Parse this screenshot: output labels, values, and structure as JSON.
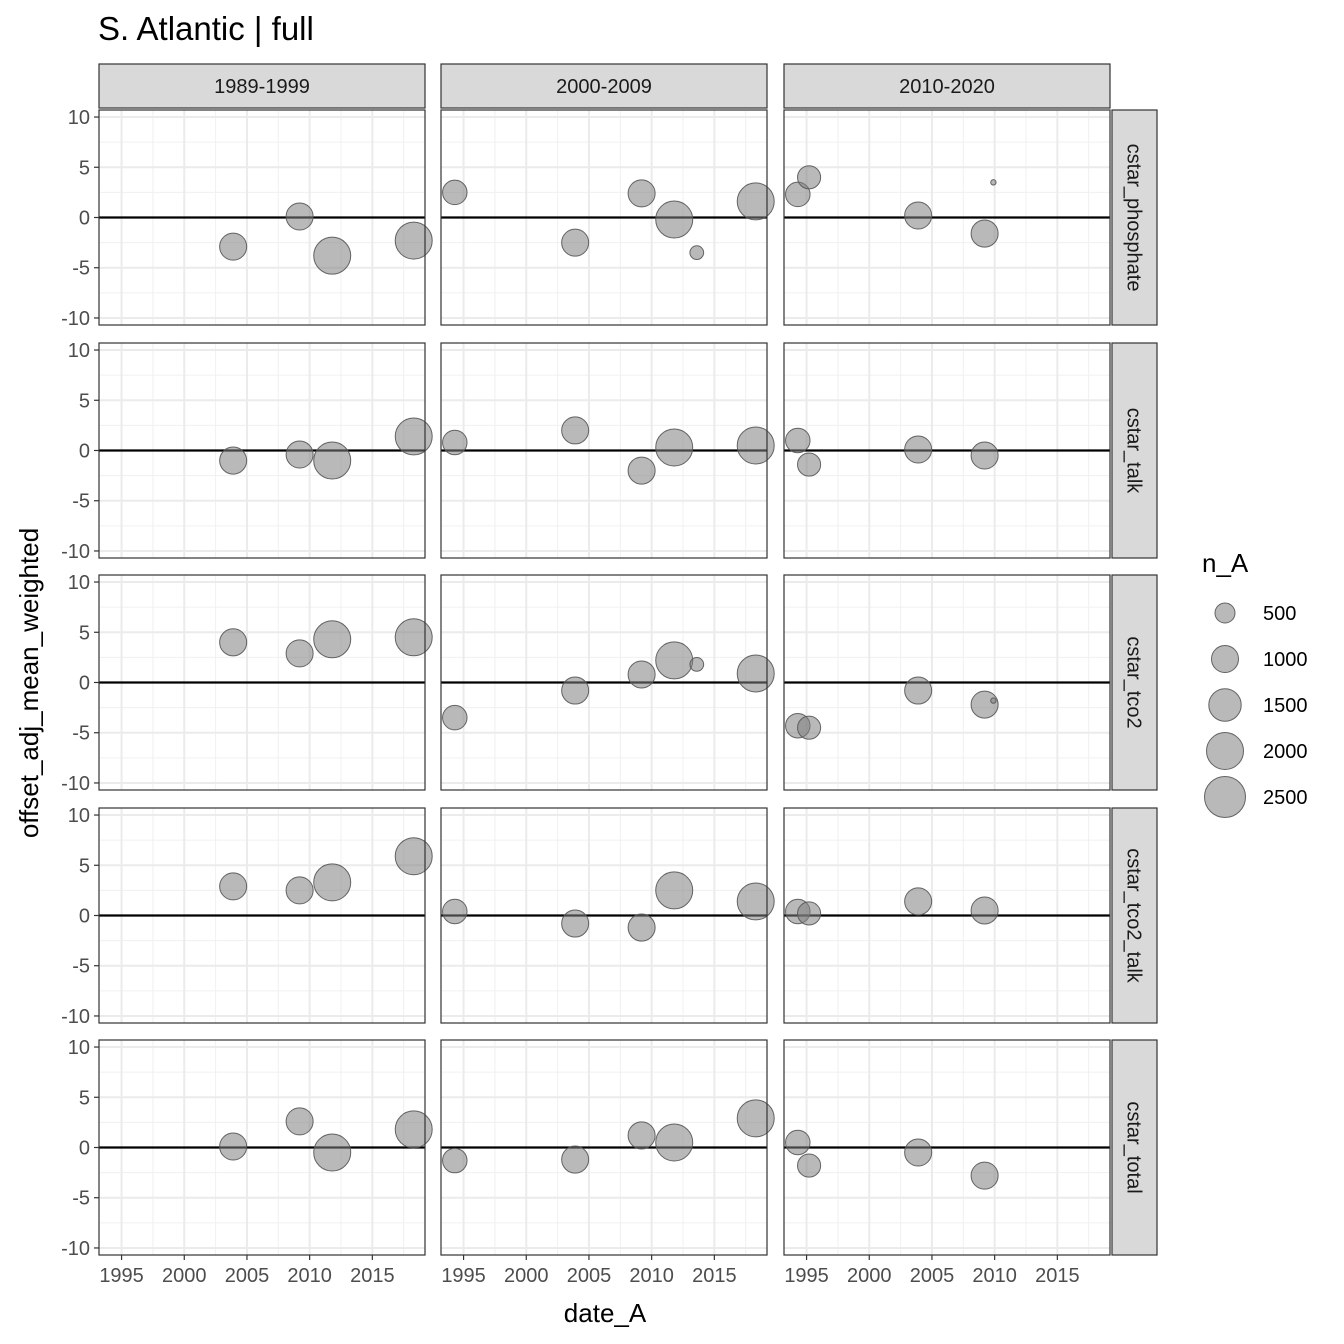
{
  "chart_data": {
    "type": "scatter",
    "title": "S. Atlantic | full",
    "xlabel": "date_A",
    "ylabel": "offset_adj_mean_weighted",
    "xlim": [
      1993.2,
      2019.2
    ],
    "ylim": [
      -10.7,
      10.7
    ],
    "x_ticks": [
      1995,
      2000,
      2005,
      2010,
      2015
    ],
    "x_tick_labels": [
      "1995",
      "2000",
      "2005",
      "2010",
      "2015"
    ],
    "y_ticks": [
      10,
      5,
      0,
      -5,
      -10
    ],
    "y_tick_labels": [
      "10",
      "5",
      "0",
      "-5",
      "-10"
    ],
    "reference_line_y": 0,
    "grid": true,
    "facet_columns": [
      "1989-1999",
      "2000-2009",
      "2010-2020"
    ],
    "facet_rows": [
      "cstar_phosphate",
      "cstar_talk",
      "cstar_tco2",
      "cstar_tco2_talk",
      "cstar_total"
    ],
    "point_color": "#808080",
    "point_stroke": "#555555",
    "point_opacity": 0.55,
    "size_legend": {
      "title": "n_A",
      "breaks": [
        500,
        1000,
        1500,
        2000,
        2500
      ],
      "labels": [
        "500",
        "1000",
        "1500",
        "2000",
        "2500"
      ]
    },
    "panels": [
      {
        "row": "cstar_phosphate",
        "col": "1989-1999",
        "points": [
          {
            "x": 2003.9,
            "y": -2.9,
            "n": 1000
          },
          {
            "x": 2009.2,
            "y": 0.1,
            "n": 1000
          },
          {
            "x": 2011.8,
            "y": -3.8,
            "n": 2000
          },
          {
            "x": 2018.3,
            "y": -2.3,
            "n": 2000
          }
        ]
      },
      {
        "row": "cstar_phosphate",
        "col": "2000-2009",
        "points": [
          {
            "x": 1994.3,
            "y": 2.5,
            "n": 800
          },
          {
            "x": 2003.9,
            "y": -2.5,
            "n": 1000
          },
          {
            "x": 2009.2,
            "y": 2.4,
            "n": 1000
          },
          {
            "x": 2011.8,
            "y": -0.2,
            "n": 2000
          },
          {
            "x": 2013.6,
            "y": -3.5,
            "n": 200
          },
          {
            "x": 2018.3,
            "y": 1.6,
            "n": 2000
          }
        ]
      },
      {
        "row": "cstar_phosphate",
        "col": "2010-2020",
        "points": [
          {
            "x": 1994.3,
            "y": 2.3,
            "n": 800
          },
          {
            "x": 1995.2,
            "y": 4.0,
            "n": 700
          },
          {
            "x": 2003.9,
            "y": 0.2,
            "n": 1000
          },
          {
            "x": 2009.2,
            "y": -1.6,
            "n": 1000
          },
          {
            "x": 2009.9,
            "y": 3.5,
            "n": 10
          }
        ]
      },
      {
        "row": "cstar_talk",
        "col": "1989-1999",
        "points": [
          {
            "x": 2003.9,
            "y": -1.0,
            "n": 1000
          },
          {
            "x": 2009.2,
            "y": -0.4,
            "n": 1000
          },
          {
            "x": 2011.8,
            "y": -1.0,
            "n": 2000
          },
          {
            "x": 2018.3,
            "y": 1.4,
            "n": 2000
          }
        ]
      },
      {
        "row": "cstar_talk",
        "col": "2000-2009",
        "points": [
          {
            "x": 1994.3,
            "y": 0.8,
            "n": 800
          },
          {
            "x": 2003.9,
            "y": 2.0,
            "n": 1000
          },
          {
            "x": 2009.2,
            "y": -2.0,
            "n": 1000
          },
          {
            "x": 2011.8,
            "y": 0.3,
            "n": 2000
          },
          {
            "x": 2018.3,
            "y": 0.5,
            "n": 2000
          }
        ]
      },
      {
        "row": "cstar_talk",
        "col": "2010-2020",
        "points": [
          {
            "x": 1994.3,
            "y": 1.0,
            "n": 800
          },
          {
            "x": 1995.2,
            "y": -1.4,
            "n": 700
          },
          {
            "x": 2003.9,
            "y": 0.1,
            "n": 1000
          },
          {
            "x": 2009.2,
            "y": -0.5,
            "n": 1000
          }
        ]
      },
      {
        "row": "cstar_tco2",
        "col": "1989-1999",
        "points": [
          {
            "x": 2003.9,
            "y": 4.0,
            "n": 1000
          },
          {
            "x": 2009.2,
            "y": 2.9,
            "n": 1000
          },
          {
            "x": 2011.8,
            "y": 4.3,
            "n": 2000
          },
          {
            "x": 2018.3,
            "y": 4.5,
            "n": 2000
          }
        ]
      },
      {
        "row": "cstar_tco2",
        "col": "2000-2009",
        "points": [
          {
            "x": 1994.3,
            "y": -3.5,
            "n": 800
          },
          {
            "x": 2003.9,
            "y": -0.8,
            "n": 1000
          },
          {
            "x": 2009.2,
            "y": 0.8,
            "n": 1000
          },
          {
            "x": 2011.8,
            "y": 2.2,
            "n": 2000
          },
          {
            "x": 2013.6,
            "y": 1.8,
            "n": 200
          },
          {
            "x": 2018.3,
            "y": 0.9,
            "n": 2000
          }
        ]
      },
      {
        "row": "cstar_tco2",
        "col": "2010-2020",
        "points": [
          {
            "x": 1994.3,
            "y": -4.3,
            "n": 800
          },
          {
            "x": 1995.2,
            "y": -4.5,
            "n": 700
          },
          {
            "x": 2003.9,
            "y": -0.8,
            "n": 1000
          },
          {
            "x": 2009.2,
            "y": -2.2,
            "n": 1000
          },
          {
            "x": 2009.9,
            "y": -1.8,
            "n": 10
          }
        ]
      },
      {
        "row": "cstar_tco2_talk",
        "col": "1989-1999",
        "points": [
          {
            "x": 2003.9,
            "y": 2.9,
            "n": 1000
          },
          {
            "x": 2009.2,
            "y": 2.5,
            "n": 1000
          },
          {
            "x": 2011.8,
            "y": 3.3,
            "n": 2000
          },
          {
            "x": 2018.3,
            "y": 5.9,
            "n": 2000
          }
        ]
      },
      {
        "row": "cstar_tco2_talk",
        "col": "2000-2009",
        "points": [
          {
            "x": 1994.3,
            "y": 0.4,
            "n": 800
          },
          {
            "x": 2003.9,
            "y": -0.8,
            "n": 1000
          },
          {
            "x": 2009.2,
            "y": -1.2,
            "n": 1000
          },
          {
            "x": 2011.8,
            "y": 2.5,
            "n": 2000
          },
          {
            "x": 2018.3,
            "y": 1.4,
            "n": 2000
          }
        ]
      },
      {
        "row": "cstar_tco2_talk",
        "col": "2010-2020",
        "points": [
          {
            "x": 1994.3,
            "y": 0.4,
            "n": 800
          },
          {
            "x": 1995.2,
            "y": 0.2,
            "n": 700
          },
          {
            "x": 2003.9,
            "y": 1.4,
            "n": 1000
          },
          {
            "x": 2009.2,
            "y": 0.5,
            "n": 1000
          }
        ]
      },
      {
        "row": "cstar_total",
        "col": "1989-1999",
        "points": [
          {
            "x": 2003.9,
            "y": 0.1,
            "n": 1000
          },
          {
            "x": 2009.2,
            "y": 2.6,
            "n": 1000
          },
          {
            "x": 2011.8,
            "y": -0.5,
            "n": 2000
          },
          {
            "x": 2018.3,
            "y": 1.8,
            "n": 2000
          }
        ]
      },
      {
        "row": "cstar_total",
        "col": "2000-2009",
        "points": [
          {
            "x": 1994.3,
            "y": -1.3,
            "n": 800
          },
          {
            "x": 2003.9,
            "y": -1.2,
            "n": 1000
          },
          {
            "x": 2009.2,
            "y": 1.2,
            "n": 1000
          },
          {
            "x": 2011.8,
            "y": 0.5,
            "n": 2000
          },
          {
            "x": 2018.3,
            "y": 2.9,
            "n": 2000
          }
        ]
      },
      {
        "row": "cstar_total",
        "col": "2010-2020",
        "points": [
          {
            "x": 1994.3,
            "y": 0.5,
            "n": 800
          },
          {
            "x": 1995.2,
            "y": -1.8,
            "n": 700
          },
          {
            "x": 2003.9,
            "y": -0.5,
            "n": 1000
          },
          {
            "x": 2009.2,
            "y": -2.8,
            "n": 1000
          }
        ]
      }
    ]
  }
}
